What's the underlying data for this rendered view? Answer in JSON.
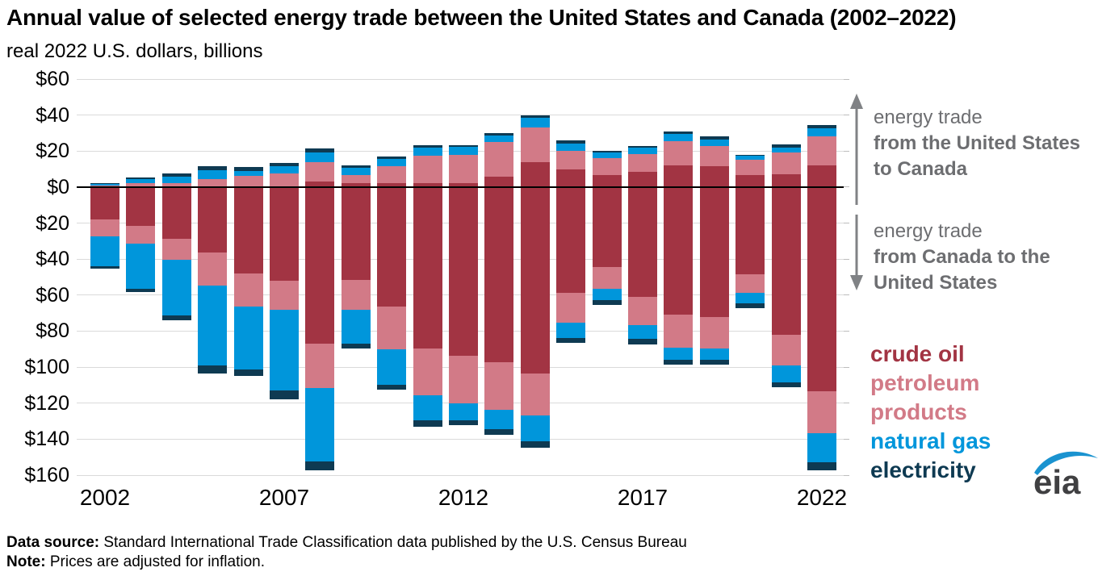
{
  "title": "Annual value of selected energy trade between the United States and Canada (2002–2022)",
  "subtitle": "real 2022 U.S. dollars, billions",
  "annotations": {
    "up_intro": "energy trade",
    "up_bold": "from the United States to Canada",
    "down_intro": "energy trade",
    "down_bold": "from Canada to the United States"
  },
  "legend": {
    "items": [
      {
        "label": "crude oil",
        "color": "#a23443"
      },
      {
        "label": "petroleum products",
        "color": "#d27a87"
      },
      {
        "label": "natural gas",
        "color": "#0096db"
      },
      {
        "label": "electricity",
        "color": "#0e3a52"
      }
    ]
  },
  "footer": {
    "data_source_label": "Data source:",
    "data_source_text": " Standard International Trade Classification data published by the U.S. Census Bureau",
    "note_label": "Note:",
    "note_text": " Prices are adjusted for inflation."
  },
  "logo_text": "eia",
  "colors": {
    "crude_oil": "#a23443",
    "petroleum_products": "#d27a87",
    "natural_gas": "#0096db",
    "electricity": "#0e3a52",
    "grid": "#dadada",
    "zero_line": "#000000",
    "annotation_gray": "#6d6e71",
    "arrow_gray": "#808285",
    "logo_blue": "#1a93d0",
    "logo_gray": "#404042"
  },
  "chart_data": {
    "type": "bar",
    "stacked": true,
    "diverging": true,
    "title": "Annual value of selected energy trade between the United States and Canada (2002–2022)",
    "subtitle_units": "real 2022 U.S. dollars, billions",
    "grid": true,
    "legend_position": "right",
    "y_axis_note": "positive values = energy trade from the United States to Canada; negative values = energy trade from Canada to the United States; labels show absolute dollars",
    "ylim": [
      -160,
      60
    ],
    "y_tick_values": [
      60,
      40,
      20,
      0,
      -20,
      -40,
      -60,
      -80,
      -100,
      -120,
      -140,
      -160
    ],
    "y_tick_labels": [
      "$60",
      "$40",
      "$20",
      "$0",
      "$20",
      "$40",
      "$60",
      "$80",
      "$100",
      "$120",
      "$140",
      "$160"
    ],
    "years": [
      2002,
      2003,
      2004,
      2005,
      2006,
      2007,
      2008,
      2009,
      2010,
      2011,
      2012,
      2013,
      2014,
      2015,
      2016,
      2017,
      2018,
      2019,
      2020,
      2021,
      2022
    ],
    "x_tick_labels": [
      "2002",
      "2007",
      "2012",
      "2017",
      "2022"
    ],
    "x_tick_indices": [
      0,
      5,
      10,
      15,
      20
    ],
    "series_order": [
      "crude_oil",
      "petroleum_products",
      "natural_gas",
      "electricity"
    ],
    "us_to_canada": {
      "crude_oil": [
        0,
        0,
        0,
        0,
        0,
        0,
        2.9,
        2.3,
        2.0,
        2.0,
        2.0,
        6.0,
        14.0,
        9.8,
        6.5,
        8.3,
        12.0,
        11.7,
        6.5,
        7.3,
        12.0
      ],
      "petroleum_products": [
        1.0,
        2.0,
        2.3,
        4.5,
        6.3,
        7.7,
        10.8,
        4.5,
        9.5,
        15.6,
        15.8,
        19.0,
        19.0,
        10.5,
        9.7,
        10.2,
        13.5,
        11.3,
        8.5,
        12.0,
        16.3
      ],
      "natural_gas": [
        1.0,
        2.3,
        3.5,
        4.8,
        2.7,
        3.9,
        5.7,
        3.9,
        4.0,
        4.5,
        4.4,
        3.8,
        5.3,
        4.0,
        3.0,
        3.6,
        3.9,
        3.5,
        2.5,
        2.4,
        4.2
      ],
      "electricity": [
        0.3,
        1.2,
        1.8,
        2.3,
        2.1,
        1.6,
        2.1,
        1.2,
        1.4,
        1.2,
        1.2,
        1.4,
        1.5,
        1.5,
        1.0,
        0.5,
        1.5,
        1.5,
        0.5,
        1.8,
        1.8
      ]
    },
    "canada_to_us": {
      "crude_oil": [
        18.0,
        21.5,
        28.5,
        36.5,
        48.0,
        52.0,
        87.0,
        51.5,
        66.5,
        89.5,
        93.5,
        97.3,
        103.5,
        58.6,
        44.3,
        61.0,
        71.0,
        72.3,
        48.3,
        82.0,
        113.5
      ],
      "petroleum_products": [
        9.5,
        10.0,
        12.0,
        18.0,
        18.5,
        16.2,
        24.5,
        16.5,
        23.5,
        26.0,
        26.6,
        26.3,
        23.2,
        16.5,
        12.3,
        15.5,
        18.0,
        17.3,
        10.5,
        17.2,
        23.0
      ],
      "natural_gas": [
        16.5,
        25.0,
        31.0,
        44.5,
        35.0,
        44.6,
        41.0,
        19.0,
        20.0,
        14.0,
        9.5,
        10.8,
        14.6,
        8.6,
        6.0,
        8.0,
        6.8,
        6.4,
        5.7,
        9.3,
        16.5
      ],
      "electricity": [
        1.5,
        2.0,
        2.5,
        4.5,
        3.2,
        5.0,
        5.0,
        2.6,
        2.6,
        3.5,
        2.6,
        3.0,
        3.4,
        2.7,
        2.7,
        3.0,
        2.7,
        2.6,
        2.6,
        2.7,
        4.5
      ]
    }
  }
}
